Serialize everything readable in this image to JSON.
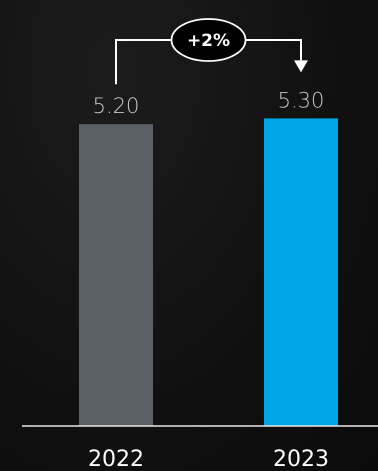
{
  "chart_data": {
    "type": "bar",
    "categories": [
      "2022",
      "2023"
    ],
    "values": [
      5.2,
      5.3
    ],
    "value_labels": [
      "5.20",
      "5.30"
    ],
    "colors": [
      "#5a6066",
      "#00a6e6"
    ],
    "change_label": "+2%",
    "ylim": [
      0,
      5.6
    ],
    "grid": false,
    "title": "",
    "xlabel": "",
    "ylabel": ""
  }
}
